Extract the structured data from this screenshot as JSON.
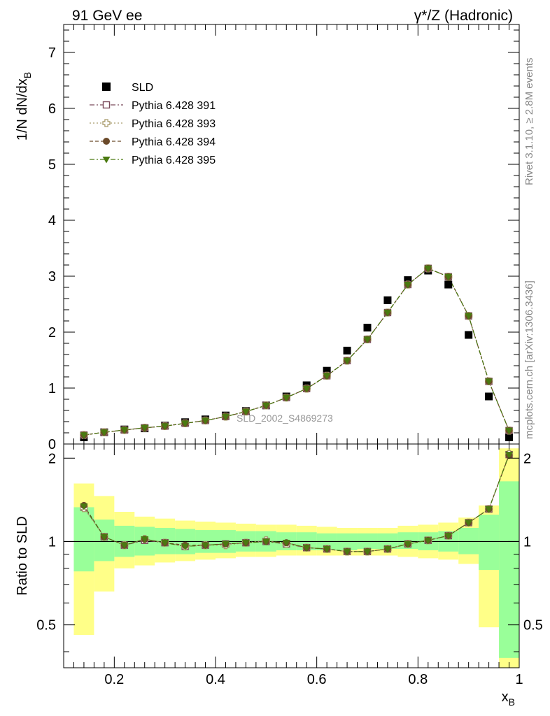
{
  "header": {
    "left": "91 GeV ee",
    "right": "γ*/Z (Hadronic)"
  },
  "side_labels": {
    "rivet": "Rivet 3.1.10, ≥ 2.8M events",
    "mcplots": "mcplots.cern.ch [arXiv:1306.3436]"
  },
  "chart_data": [
    {
      "type": "scatter",
      "title": "",
      "xlabel": "x_B",
      "ylabel": "1/N dN/dx_B",
      "xlim": [
        0.1,
        1.0
      ],
      "ylim": [
        0,
        7.5
      ],
      "y_ticks": [
        "0",
        "1",
        "2",
        "3",
        "4",
        "5",
        "6",
        "7"
      ],
      "annotation": "SLD_2002_S4869273",
      "legend_position": "top-left",
      "x": [
        0.14,
        0.18,
        0.22,
        0.26,
        0.3,
        0.34,
        0.38,
        0.42,
        0.46,
        0.5,
        0.54,
        0.58,
        0.62,
        0.66,
        0.7,
        0.74,
        0.78,
        0.82,
        0.86,
        0.9,
        0.94,
        0.98
      ],
      "series": [
        {
          "name": "SLD",
          "marker": "square",
          "color": "#000000",
          "values": [
            0.12,
            0.21,
            0.26,
            0.28,
            0.33,
            0.39,
            0.44,
            0.51,
            0.59,
            0.69,
            0.85,
            1.05,
            1.31,
            1.67,
            2.08,
            2.57,
            2.93,
            3.1,
            2.85,
            1.95,
            0.85,
            0.12
          ]
        },
        {
          "name": "Pythia 6.428 391",
          "marker": "open-square",
          "color": "#7a4a5a",
          "values": [
            0.16,
            0.21,
            0.25,
            0.29,
            0.32,
            0.37,
            0.42,
            0.49,
            0.58,
            0.69,
            0.83,
            0.99,
            1.22,
            1.49,
            1.87,
            2.35,
            2.85,
            3.14,
            2.99,
            2.29,
            1.12,
            0.24
          ]
        },
        {
          "name": "Pythia 6.428 393",
          "marker": "open-cross",
          "color": "#a89a6a",
          "values": [
            0.16,
            0.21,
            0.25,
            0.29,
            0.32,
            0.37,
            0.42,
            0.49,
            0.58,
            0.69,
            0.83,
            0.99,
            1.22,
            1.49,
            1.87,
            2.35,
            2.85,
            3.14,
            2.99,
            2.29,
            1.12,
            0.24
          ]
        },
        {
          "name": "Pythia 6.428 394",
          "marker": "circle",
          "color": "#6b4a2a",
          "values": [
            0.16,
            0.21,
            0.25,
            0.29,
            0.32,
            0.37,
            0.42,
            0.49,
            0.58,
            0.69,
            0.83,
            0.99,
            1.22,
            1.49,
            1.87,
            2.35,
            2.85,
            3.14,
            2.99,
            2.29,
            1.12,
            0.24
          ]
        },
        {
          "name": "Pythia 6.428 395",
          "marker": "triangle-down",
          "color": "#4a7a10",
          "values": [
            0.16,
            0.21,
            0.25,
            0.29,
            0.32,
            0.37,
            0.42,
            0.49,
            0.58,
            0.69,
            0.83,
            0.99,
            1.22,
            1.49,
            1.87,
            2.35,
            2.85,
            3.14,
            2.99,
            2.29,
            1.12,
            0.24
          ]
        }
      ]
    },
    {
      "type": "scatter",
      "title": "",
      "xlabel": "x_B",
      "ylabel": "Ratio to SLD",
      "xlim": [
        0.1,
        1.0
      ],
      "ylim": [
        0.35,
        2.25
      ],
      "x_ticks": [
        "0.2",
        "0.4",
        "0.6",
        "0.8",
        "1"
      ],
      "y_ticks": [
        "0.5",
        "1",
        "2"
      ],
      "bin_edges": [
        0.12,
        0.16,
        0.2,
        0.24,
        0.28,
        0.32,
        0.36,
        0.4,
        0.44,
        0.48,
        0.52,
        0.56,
        0.6,
        0.64,
        0.68,
        0.72,
        0.76,
        0.8,
        0.84,
        0.88,
        0.92,
        0.96,
        1.0
      ],
      "band_inner": [
        [
          0.78,
          1.33
        ],
        [
          0.85,
          1.2
        ],
        [
          0.88,
          1.14
        ],
        [
          0.89,
          1.13
        ],
        [
          0.9,
          1.12
        ],
        [
          0.9,
          1.11
        ],
        [
          0.91,
          1.1
        ],
        [
          0.91,
          1.1
        ],
        [
          0.92,
          1.09
        ],
        [
          0.92,
          1.09
        ],
        [
          0.93,
          1.08
        ],
        [
          0.93,
          1.08
        ],
        [
          0.93,
          1.07
        ],
        [
          0.93,
          1.07
        ],
        [
          0.94,
          1.07
        ],
        [
          0.94,
          1.07
        ],
        [
          0.94,
          1.08
        ],
        [
          0.93,
          1.08
        ],
        [
          0.92,
          1.09
        ],
        [
          0.9,
          1.12
        ],
        [
          0.79,
          1.25
        ],
        [
          0.38,
          1.65
        ]
      ],
      "band_outer": [
        [
          0.46,
          1.62
        ],
        [
          0.66,
          1.46
        ],
        [
          0.8,
          1.28
        ],
        [
          0.82,
          1.23
        ],
        [
          0.84,
          1.21
        ],
        [
          0.85,
          1.19
        ],
        [
          0.86,
          1.18
        ],
        [
          0.87,
          1.17
        ],
        [
          0.88,
          1.16
        ],
        [
          0.88,
          1.15
        ],
        [
          0.89,
          1.15
        ],
        [
          0.89,
          1.14
        ],
        [
          0.89,
          1.13
        ],
        [
          0.89,
          1.12
        ],
        [
          0.89,
          1.12
        ],
        [
          0.89,
          1.12
        ],
        [
          0.88,
          1.14
        ],
        [
          0.87,
          1.15
        ],
        [
          0.86,
          1.17
        ],
        [
          0.83,
          1.22
        ],
        [
          0.49,
          1.35
        ],
        [
          0.34,
          2.17
        ]
      ],
      "x": [
        0.14,
        0.18,
        0.22,
        0.26,
        0.3,
        0.34,
        0.38,
        0.42,
        0.46,
        0.5,
        0.54,
        0.58,
        0.62,
        0.66,
        0.7,
        0.74,
        0.78,
        0.82,
        0.86,
        0.9,
        0.94,
        0.98
      ],
      "series": [
        {
          "name": "Pythia 6.428 391",
          "marker": "open-square",
          "color": "#7a4a5a",
          "values": [
            1.33,
            1.04,
            0.97,
            1.01,
            0.99,
            0.96,
            0.97,
            0.98,
            0.99,
            1.0,
            0.98,
            0.95,
            0.94,
            0.92,
            0.92,
            0.94,
            0.98,
            1.01,
            1.05,
            1.17,
            1.31,
            2.06
          ]
        },
        {
          "name": "Pythia 6.428 393",
          "marker": "open-cross",
          "color": "#a89a6a",
          "values": [
            1.32,
            1.04,
            0.97,
            1.02,
            0.99,
            0.96,
            0.97,
            0.97,
            0.99,
            1.01,
            0.98,
            0.95,
            0.94,
            0.92,
            0.92,
            0.94,
            0.98,
            1.01,
            1.05,
            1.17,
            1.31,
            2.07
          ]
        },
        {
          "name": "Pythia 6.428 394",
          "marker": "circle",
          "color": "#6b4a2a",
          "values": [
            1.35,
            1.04,
            0.97,
            1.02,
            0.99,
            0.97,
            0.97,
            0.98,
            0.99,
            1.0,
            0.99,
            0.95,
            0.94,
            0.92,
            0.92,
            0.94,
            0.98,
            1.01,
            1.05,
            1.17,
            1.31,
            2.05
          ]
        },
        {
          "name": "Pythia 6.428 395",
          "marker": "triangle-down",
          "color": "#4a7a10",
          "values": [
            1.34,
            1.04,
            0.97,
            1.02,
            0.99,
            0.96,
            0.97,
            0.98,
            0.99,
            1.0,
            0.99,
            0.95,
            0.94,
            0.92,
            0.92,
            0.94,
            0.98,
            1.01,
            1.05,
            1.17,
            1.31,
            2.06
          ]
        }
      ]
    }
  ]
}
